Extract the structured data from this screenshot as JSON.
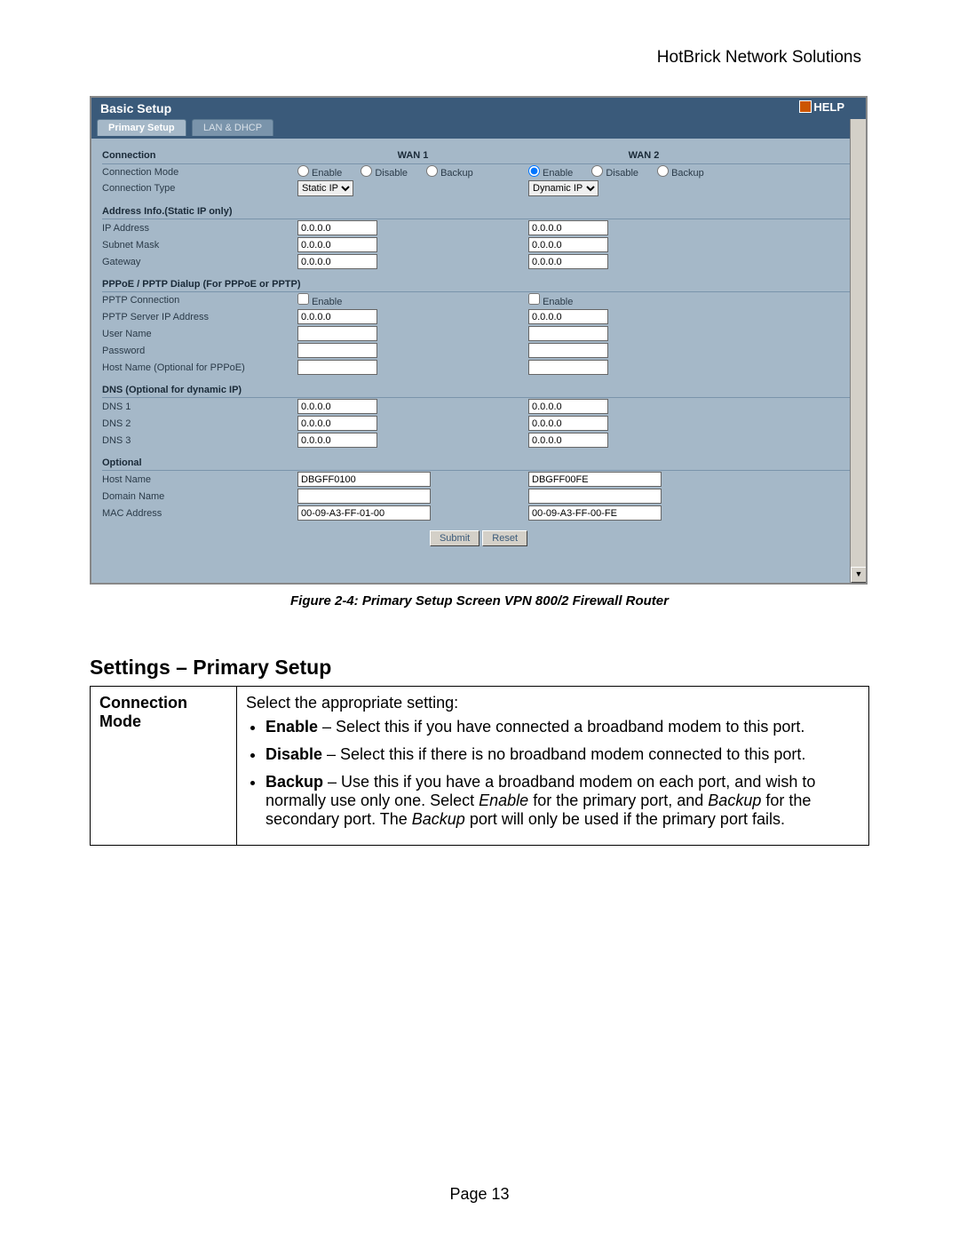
{
  "page": {
    "header": "HotBrick Network Solutions",
    "figure_caption": "Figure 2-4: Primary Setup Screen VPN 800/2 Firewall Router",
    "settings_heading": "Settings – Primary Setup",
    "page_number": "Page 13"
  },
  "screenshot": {
    "title": "Basic Setup",
    "help_label": "HELP",
    "tabs": [
      {
        "label": "Primary Setup",
        "active": true
      },
      {
        "label": "LAN & DHCP",
        "active": false
      }
    ],
    "colors": {
      "panel_bg": "#a5b8c8",
      "titlebar_bg": "#3a5a7a",
      "text": "#2a3a48"
    },
    "connection": {
      "heading": "Connection",
      "wan1_label": "WAN 1",
      "wan2_label": "WAN 2",
      "mode_label": "Connection Mode",
      "radio_enable": "Enable",
      "radio_disable": "Disable",
      "radio_backup": "Backup",
      "wan1_mode": "none",
      "wan2_mode": "enable",
      "type_label": "Connection Type",
      "wan1_type": "Static IP",
      "wan2_type": "Dynamic IP"
    },
    "address": {
      "heading": "Address Info.(Static IP only)",
      "ip_label": "IP Address",
      "subnet_label": "Subnet Mask",
      "gateway_label": "Gateway",
      "wan1": {
        "ip": "0.0.0.0",
        "subnet": "0.0.0.0",
        "gateway": "0.0.0.0"
      },
      "wan2": {
        "ip": "0.0.0.0",
        "subnet": "0.0.0.0",
        "gateway": "0.0.0.0"
      }
    },
    "pppoe": {
      "heading": "PPPoE / PPTP Dialup (For PPPoE or PPTP)",
      "conn_label": "PPTP Connection",
      "enable_label": "Enable",
      "server_label": "PPTP Server IP Address",
      "user_label": "User Name",
      "pass_label": "Password",
      "host_label": "Host Name (Optional for PPPoE)",
      "wan1": {
        "enable": false,
        "server": "0.0.0.0",
        "user": "",
        "pass": "",
        "host": ""
      },
      "wan2": {
        "enable": false,
        "server": "0.0.0.0",
        "user": "",
        "pass": "",
        "host": ""
      }
    },
    "dns": {
      "heading": "DNS (Optional for dynamic IP)",
      "dns1_label": "DNS 1",
      "dns2_label": "DNS 2",
      "dns3_label": "DNS 3",
      "wan1": {
        "dns1": "0.0.0.0",
        "dns2": "0.0.0.0",
        "dns3": "0.0.0.0"
      },
      "wan2": {
        "dns1": "0.0.0.0",
        "dns2": "0.0.0.0",
        "dns3": "0.0.0.0"
      }
    },
    "optional": {
      "heading": "Optional",
      "host_label": "Host Name",
      "domain_label": "Domain Name",
      "mac_label": "MAC Address",
      "wan1": {
        "host": "DBGFF0100",
        "domain": "",
        "mac": "00-09-A3-FF-01-00"
      },
      "wan2": {
        "host": "DBGFF00FE",
        "domain": "",
        "mac": "00-09-A3-FF-00-FE"
      }
    },
    "buttons": {
      "submit": "Submit",
      "reset": "Reset"
    }
  },
  "settings_table": {
    "row1_key": "Connection Mode",
    "row1_intro": "Select the appropriate setting:",
    "row1_items": {
      "enable_b": "Enable",
      "enable_t": " – Select this if you have connected a broadband modem to this port.",
      "disable_b": "Disable",
      "disable_t": " – Select this if there is no broadband modem connected to this port.",
      "backup_b": "Backup",
      "backup_t1": " – Use this if you have a broadband modem on each port, and wish to normally use only one. Select ",
      "backup_i1": "Enable",
      "backup_t2": " for the primary port, and ",
      "backup_i2": "Backup",
      "backup_t3": " for the secondary port. The ",
      "backup_i3": "Backup",
      "backup_t4": " port will only be used if the primary port fails."
    }
  }
}
